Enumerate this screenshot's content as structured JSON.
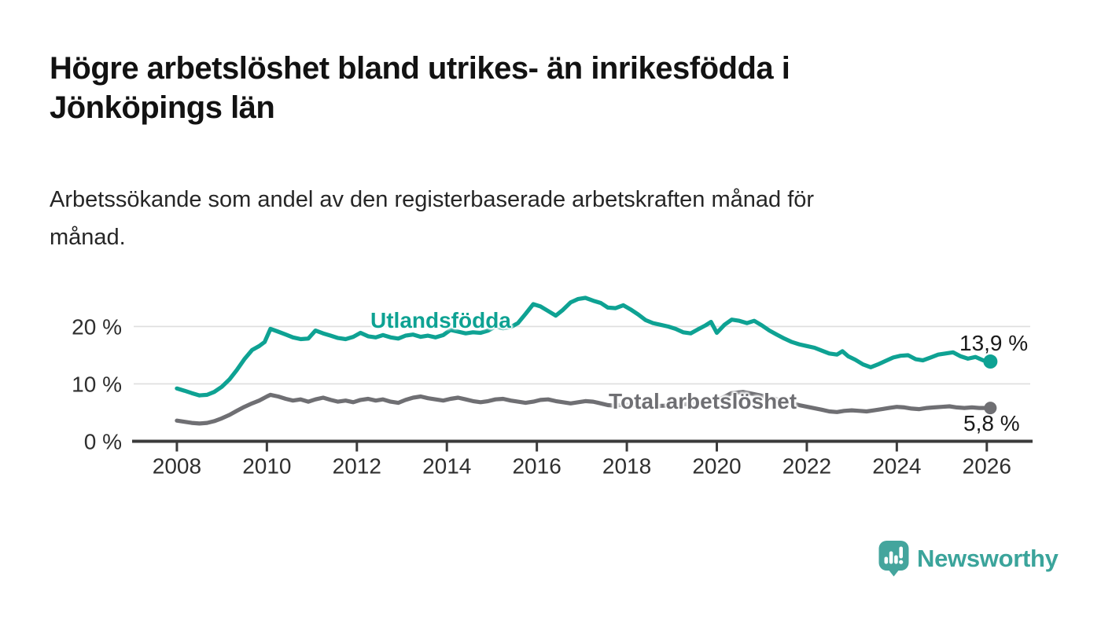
{
  "header": {
    "title_lines": [
      "Högre arbetslöshet bland utrikes- än inrikesfödda i",
      "Jönköpings län"
    ],
    "subtitle_lines": [
      "Arbetssökande som andel av den registerbaserade arbetskraften månad för",
      "månad."
    ]
  },
  "colors": {
    "accent_teal": "#0ea293",
    "series_gray": "#6f6f73",
    "axis": "#3b3b3b",
    "gridline": "#dedede",
    "logo_teal": "#44a59d"
  },
  "chart_data": {
    "type": "line",
    "title": "Högre arbetslöshet bland utrikes- än inrikesfödda i Jönköpings län",
    "subtitle": "Arbetssökande som andel av den registerbaserade arbetskraften månad för månad.",
    "xlabel": "",
    "ylabel": "",
    "grid": "horizontal",
    "legend_position": "inline-labels",
    "x_axis": {
      "range": [
        2007.04,
        2027.0
      ],
      "ticks": [
        2008,
        2010,
        2012,
        2014,
        2016,
        2018,
        2020,
        2022,
        2024,
        2026
      ]
    },
    "y_axis": {
      "range": [
        0,
        27.5
      ],
      "ticks": [
        0,
        10,
        20
      ],
      "tick_suffix": " %"
    },
    "series": [
      {
        "name": "Utlandsfödda",
        "color": "#0ea293",
        "end_label": "13,9 %",
        "points": [
          [
            2008.0,
            9.2
          ],
          [
            2008.17,
            8.8
          ],
          [
            2008.33,
            8.4
          ],
          [
            2008.5,
            8.0
          ],
          [
            2008.67,
            8.1
          ],
          [
            2008.83,
            8.6
          ],
          [
            2009.0,
            9.5
          ],
          [
            2009.17,
            10.8
          ],
          [
            2009.33,
            12.4
          ],
          [
            2009.5,
            14.3
          ],
          [
            2009.67,
            15.9
          ],
          [
            2009.83,
            16.6
          ],
          [
            2009.95,
            17.3
          ],
          [
            2010.08,
            19.6
          ],
          [
            2010.25,
            19.1
          ],
          [
            2010.42,
            18.6
          ],
          [
            2010.58,
            18.1
          ],
          [
            2010.75,
            17.8
          ],
          [
            2010.92,
            17.9
          ],
          [
            2011.08,
            19.3
          ],
          [
            2011.25,
            18.8
          ],
          [
            2011.42,
            18.4
          ],
          [
            2011.58,
            18.0
          ],
          [
            2011.75,
            17.8
          ],
          [
            2011.92,
            18.2
          ],
          [
            2012.08,
            18.9
          ],
          [
            2012.25,
            18.3
          ],
          [
            2012.42,
            18.1
          ],
          [
            2012.58,
            18.5
          ],
          [
            2012.75,
            18.1
          ],
          [
            2012.92,
            17.9
          ],
          [
            2013.08,
            18.4
          ],
          [
            2013.25,
            18.6
          ],
          [
            2013.42,
            18.2
          ],
          [
            2013.58,
            18.4
          ],
          [
            2013.75,
            18.1
          ],
          [
            2013.92,
            18.5
          ],
          [
            2014.08,
            19.4
          ],
          [
            2014.25,
            19.1
          ],
          [
            2014.42,
            18.8
          ],
          [
            2014.58,
            19.0
          ],
          [
            2014.75,
            18.9
          ],
          [
            2014.92,
            19.3
          ],
          [
            2015.08,
            20.0
          ],
          [
            2015.25,
            19.7
          ],
          [
            2015.42,
            19.9
          ],
          [
            2015.58,
            20.6
          ],
          [
            2015.75,
            22.2
          ],
          [
            2015.92,
            23.9
          ],
          [
            2016.08,
            23.5
          ],
          [
            2016.25,
            22.7
          ],
          [
            2016.42,
            21.9
          ],
          [
            2016.58,
            22.9
          ],
          [
            2016.75,
            24.2
          ],
          [
            2016.92,
            24.8
          ],
          [
            2017.08,
            25.0
          ],
          [
            2017.25,
            24.5
          ],
          [
            2017.42,
            24.1
          ],
          [
            2017.58,
            23.3
          ],
          [
            2017.75,
            23.2
          ],
          [
            2017.92,
            23.7
          ],
          [
            2018.08,
            23.0
          ],
          [
            2018.25,
            22.1
          ],
          [
            2018.42,
            21.1
          ],
          [
            2018.58,
            20.6
          ],
          [
            2018.75,
            20.3
          ],
          [
            2018.92,
            20.0
          ],
          [
            2019.08,
            19.6
          ],
          [
            2019.25,
            19.0
          ],
          [
            2019.42,
            18.8
          ],
          [
            2019.58,
            19.5
          ],
          [
            2019.75,
            20.2
          ],
          [
            2019.87,
            20.8
          ],
          [
            2020.0,
            18.9
          ],
          [
            2020.17,
            20.3
          ],
          [
            2020.33,
            21.2
          ],
          [
            2020.5,
            21.0
          ],
          [
            2020.67,
            20.6
          ],
          [
            2020.83,
            21.0
          ],
          [
            2021.0,
            20.2
          ],
          [
            2021.17,
            19.3
          ],
          [
            2021.33,
            18.6
          ],
          [
            2021.5,
            17.9
          ],
          [
            2021.67,
            17.3
          ],
          [
            2021.83,
            16.9
          ],
          [
            2022.0,
            16.6
          ],
          [
            2022.17,
            16.3
          ],
          [
            2022.33,
            15.8
          ],
          [
            2022.5,
            15.3
          ],
          [
            2022.67,
            15.1
          ],
          [
            2022.79,
            15.7
          ],
          [
            2022.92,
            14.8
          ],
          [
            2023.08,
            14.2
          ],
          [
            2023.25,
            13.4
          ],
          [
            2023.42,
            12.9
          ],
          [
            2023.58,
            13.4
          ],
          [
            2023.75,
            14.0
          ],
          [
            2023.92,
            14.6
          ],
          [
            2024.08,
            14.9
          ],
          [
            2024.25,
            15.0
          ],
          [
            2024.42,
            14.3
          ],
          [
            2024.58,
            14.1
          ],
          [
            2024.75,
            14.6
          ],
          [
            2024.92,
            15.1
          ],
          [
            2025.08,
            15.3
          ],
          [
            2025.25,
            15.5
          ],
          [
            2025.42,
            14.8
          ],
          [
            2025.58,
            14.4
          ],
          [
            2025.75,
            14.7
          ],
          [
            2025.92,
            14.1
          ],
          [
            2026.08,
            13.9
          ]
        ]
      },
      {
        "name": "Total arbetslöshet",
        "color": "#6f6f73",
        "end_label": "5,8 %",
        "points": [
          [
            2008.0,
            3.6
          ],
          [
            2008.17,
            3.4
          ],
          [
            2008.33,
            3.2
          ],
          [
            2008.5,
            3.1
          ],
          [
            2008.67,
            3.2
          ],
          [
            2008.83,
            3.5
          ],
          [
            2009.0,
            4.0
          ],
          [
            2009.17,
            4.6
          ],
          [
            2009.33,
            5.3
          ],
          [
            2009.5,
            6.0
          ],
          [
            2009.67,
            6.6
          ],
          [
            2009.83,
            7.1
          ],
          [
            2010.0,
            7.8
          ],
          [
            2010.08,
            8.1
          ],
          [
            2010.25,
            7.8
          ],
          [
            2010.42,
            7.4
          ],
          [
            2010.58,
            7.1
          ],
          [
            2010.75,
            7.3
          ],
          [
            2010.92,
            6.9
          ],
          [
            2011.08,
            7.3
          ],
          [
            2011.25,
            7.6
          ],
          [
            2011.42,
            7.2
          ],
          [
            2011.58,
            6.9
          ],
          [
            2011.75,
            7.1
          ],
          [
            2011.92,
            6.8
          ],
          [
            2012.08,
            7.2
          ],
          [
            2012.25,
            7.4
          ],
          [
            2012.42,
            7.1
          ],
          [
            2012.58,
            7.3
          ],
          [
            2012.75,
            6.9
          ],
          [
            2012.92,
            6.7
          ],
          [
            2013.08,
            7.2
          ],
          [
            2013.25,
            7.6
          ],
          [
            2013.42,
            7.8
          ],
          [
            2013.58,
            7.5
          ],
          [
            2013.75,
            7.3
          ],
          [
            2013.92,
            7.1
          ],
          [
            2014.08,
            7.4
          ],
          [
            2014.25,
            7.6
          ],
          [
            2014.42,
            7.3
          ],
          [
            2014.58,
            7.0
          ],
          [
            2014.75,
            6.8
          ],
          [
            2014.92,
            7.0
          ],
          [
            2015.08,
            7.3
          ],
          [
            2015.25,
            7.4
          ],
          [
            2015.42,
            7.1
          ],
          [
            2015.58,
            6.9
          ],
          [
            2015.75,
            6.7
          ],
          [
            2015.92,
            6.9
          ],
          [
            2016.08,
            7.2
          ],
          [
            2016.25,
            7.3
          ],
          [
            2016.42,
            7.0
          ],
          [
            2016.58,
            6.8
          ],
          [
            2016.75,
            6.6
          ],
          [
            2016.92,
            6.8
          ],
          [
            2017.08,
            7.0
          ],
          [
            2017.25,
            6.9
          ],
          [
            2017.42,
            6.6
          ],
          [
            2017.58,
            6.3
          ],
          [
            2017.75,
            6.2
          ],
          [
            2017.92,
            6.4
          ],
          [
            2018.17,
            6.3
          ],
          [
            2018.5,
            6.1
          ],
          [
            2018.83,
            6.2
          ],
          [
            2019.17,
            6.4
          ],
          [
            2019.5,
            6.6
          ],
          [
            2019.83,
            6.9
          ],
          [
            2020.08,
            7.4
          ],
          [
            2020.33,
            8.4
          ],
          [
            2020.58,
            8.6
          ],
          [
            2020.83,
            8.2
          ],
          [
            2021.08,
            7.8
          ],
          [
            2021.33,
            7.3
          ],
          [
            2021.58,
            6.8
          ],
          [
            2021.83,
            6.3
          ],
          [
            2022.08,
            5.9
          ],
          [
            2022.33,
            5.5
          ],
          [
            2022.5,
            5.2
          ],
          [
            2022.67,
            5.1
          ],
          [
            2022.83,
            5.3
          ],
          [
            2023.0,
            5.4
          ],
          [
            2023.17,
            5.3
          ],
          [
            2023.33,
            5.2
          ],
          [
            2023.5,
            5.4
          ],
          [
            2023.67,
            5.6
          ],
          [
            2023.83,
            5.8
          ],
          [
            2024.0,
            6.0
          ],
          [
            2024.17,
            5.9
          ],
          [
            2024.33,
            5.7
          ],
          [
            2024.5,
            5.6
          ],
          [
            2024.67,
            5.8
          ],
          [
            2024.83,
            5.9
          ],
          [
            2025.0,
            6.0
          ],
          [
            2025.17,
            6.1
          ],
          [
            2025.33,
            5.9
          ],
          [
            2025.5,
            5.8
          ],
          [
            2025.67,
            5.9
          ],
          [
            2025.83,
            5.8
          ],
          [
            2026.08,
            5.8
          ]
        ]
      }
    ]
  },
  "logo": {
    "text": "Newsworthy",
    "icon": "newsworthy-bubble-chart-icon"
  }
}
